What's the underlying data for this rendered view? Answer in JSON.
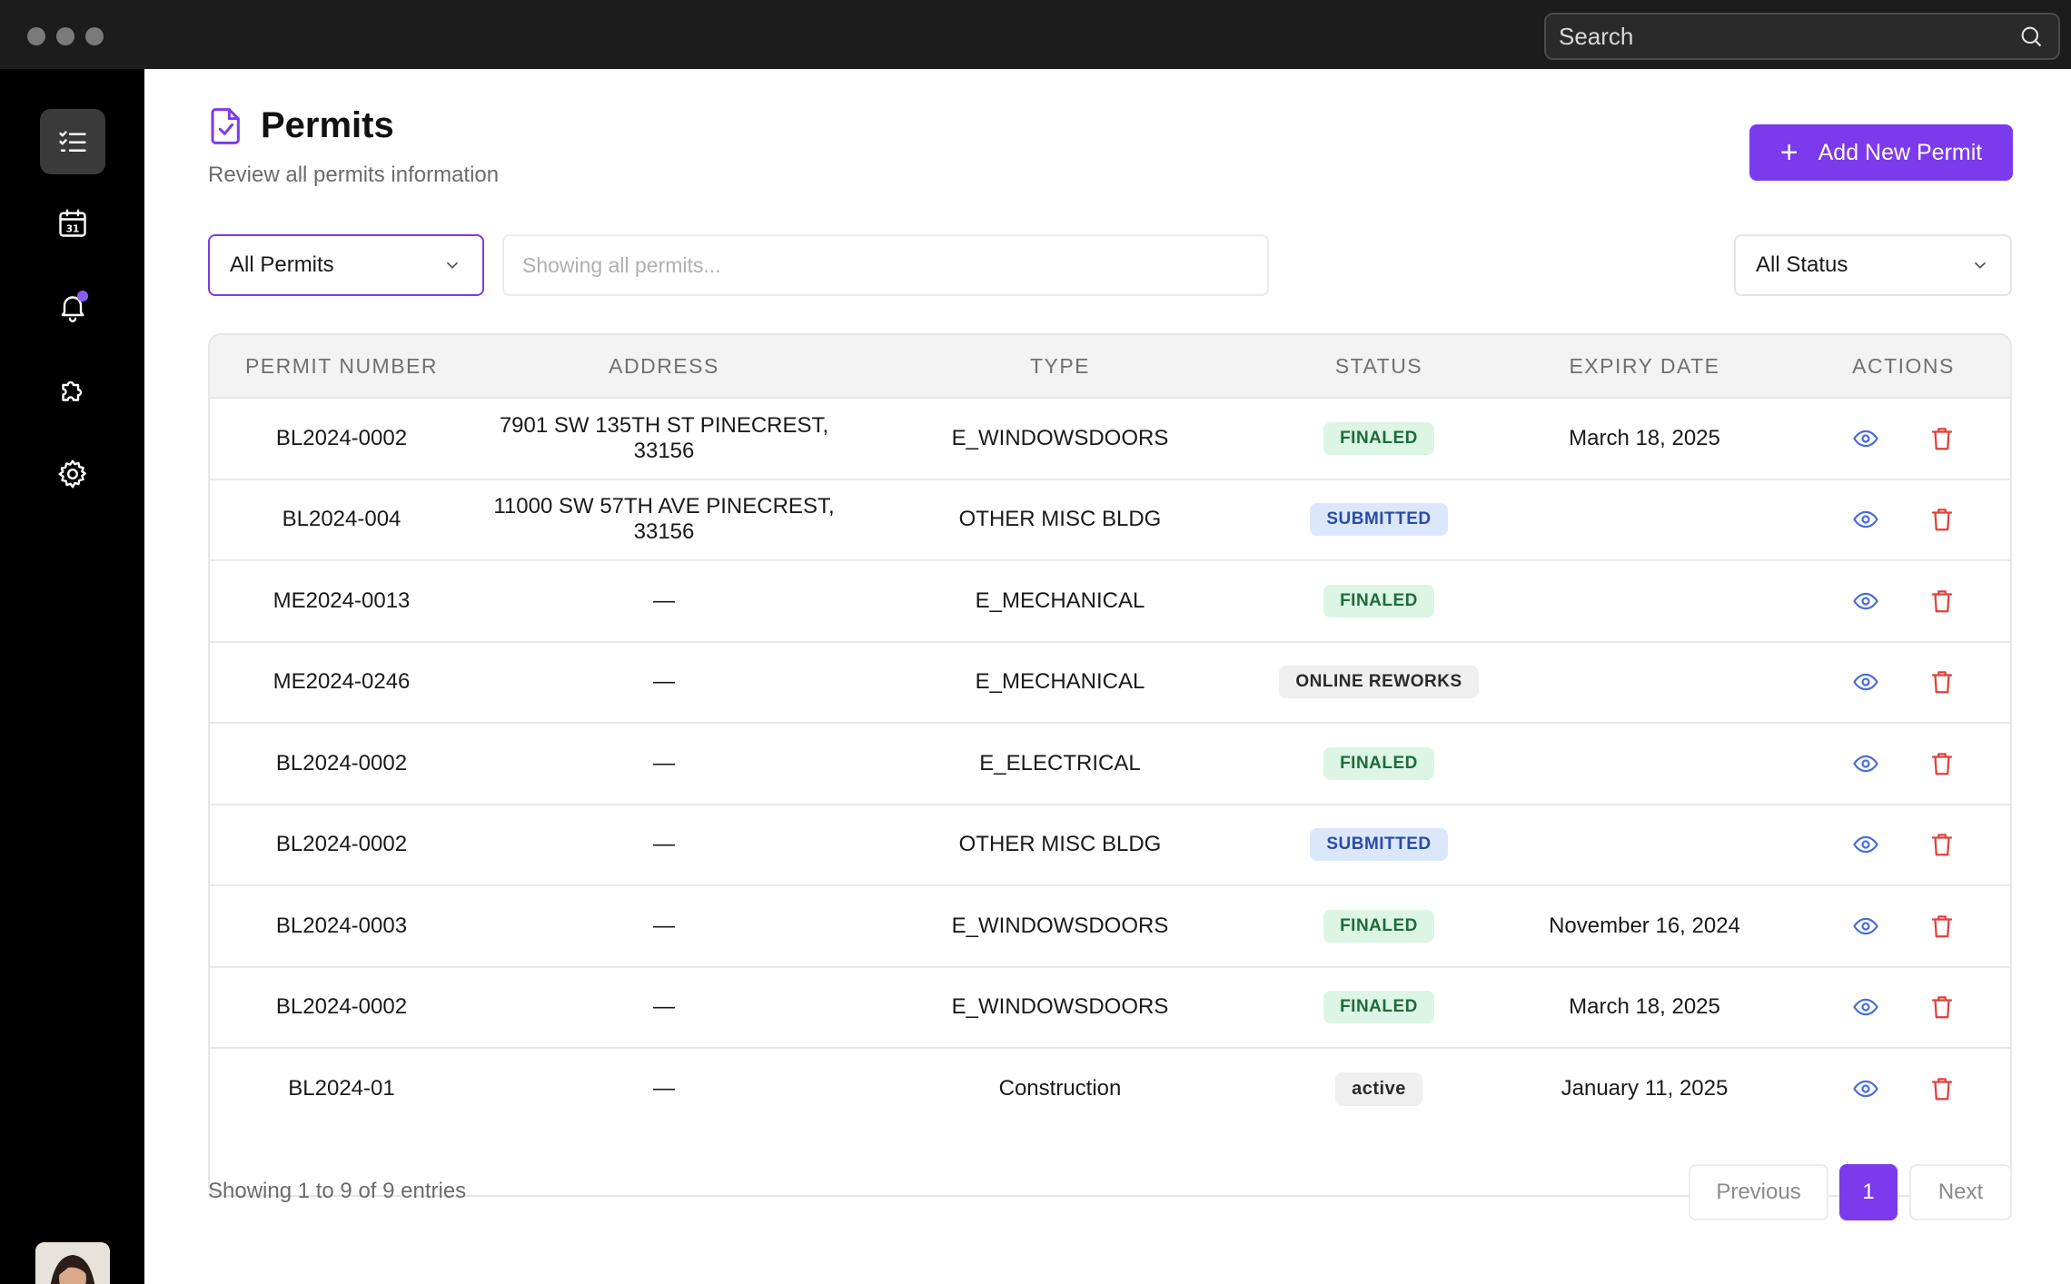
{
  "topbar": {
    "search_placeholder": "Search"
  },
  "sidebar": {
    "items": [
      {
        "name": "tasks"
      },
      {
        "name": "calendar",
        "day": "31"
      },
      {
        "name": "notifications"
      },
      {
        "name": "extensions"
      },
      {
        "name": "settings"
      }
    ]
  },
  "page": {
    "title": "Permits",
    "subtitle": "Review all permits information",
    "add_button": "Add New Permit"
  },
  "filters": {
    "permits_select": "All Permits",
    "search_placeholder": "Showing all permits...",
    "status_select": "All Status"
  },
  "table": {
    "headers": [
      "PERMIT NUMBER",
      "ADDRESS",
      "TYPE",
      "STATUS",
      "EXPIRY DATE",
      "ACTIONS"
    ],
    "rows": [
      {
        "number": "BL2024-0002",
        "address": "7901 SW 135TH ST PINECREST, 33156",
        "type": "E_WINDOWSDOORS",
        "status": "FINALED",
        "expiry": "March 18, 2025"
      },
      {
        "number": "BL2024-004",
        "address": "11000 SW 57TH AVE PINECREST, 33156",
        "type": "OTHER MISC BLDG",
        "status": "SUBMITTED",
        "expiry": ""
      },
      {
        "number": "ME2024-0013",
        "address": "—",
        "type": "E_MECHANICAL",
        "status": "FINALED",
        "expiry": ""
      },
      {
        "number": "ME2024-0246",
        "address": "—",
        "type": "E_MECHANICAL",
        "status": "ONLINE REWORKS",
        "expiry": ""
      },
      {
        "number": "BL2024-0002",
        "address": "—",
        "type": "E_ELECTRICAL",
        "status": "FINALED",
        "expiry": ""
      },
      {
        "number": "BL2024-0002",
        "address": "—",
        "type": "OTHER MISC BLDG",
        "status": "SUBMITTED",
        "expiry": ""
      },
      {
        "number": "BL2024-0003",
        "address": "—",
        "type": "E_WINDOWSDOORS",
        "status": "FINALED",
        "expiry": "November 16, 2024"
      },
      {
        "number": "BL2024-0002",
        "address": "—",
        "type": "E_WINDOWSDOORS",
        "status": "FINALED",
        "expiry": "March 18, 2025"
      },
      {
        "number": "BL2024-01",
        "address": "—",
        "type": "Construction",
        "status": "active",
        "expiry": "January 11, 2025"
      }
    ]
  },
  "footer": {
    "entries_text": "Showing 1 to 9 of 9 entries",
    "prev_label": "Previous",
    "current_page": "1",
    "next_label": "Next"
  },
  "colors": {
    "accent": "#7c3aed",
    "finaled_bg": "#dcf5e4",
    "submitted_bg": "#dbe7fb",
    "view_icon": "#4a6fd8",
    "delete_icon": "#e0413a"
  }
}
